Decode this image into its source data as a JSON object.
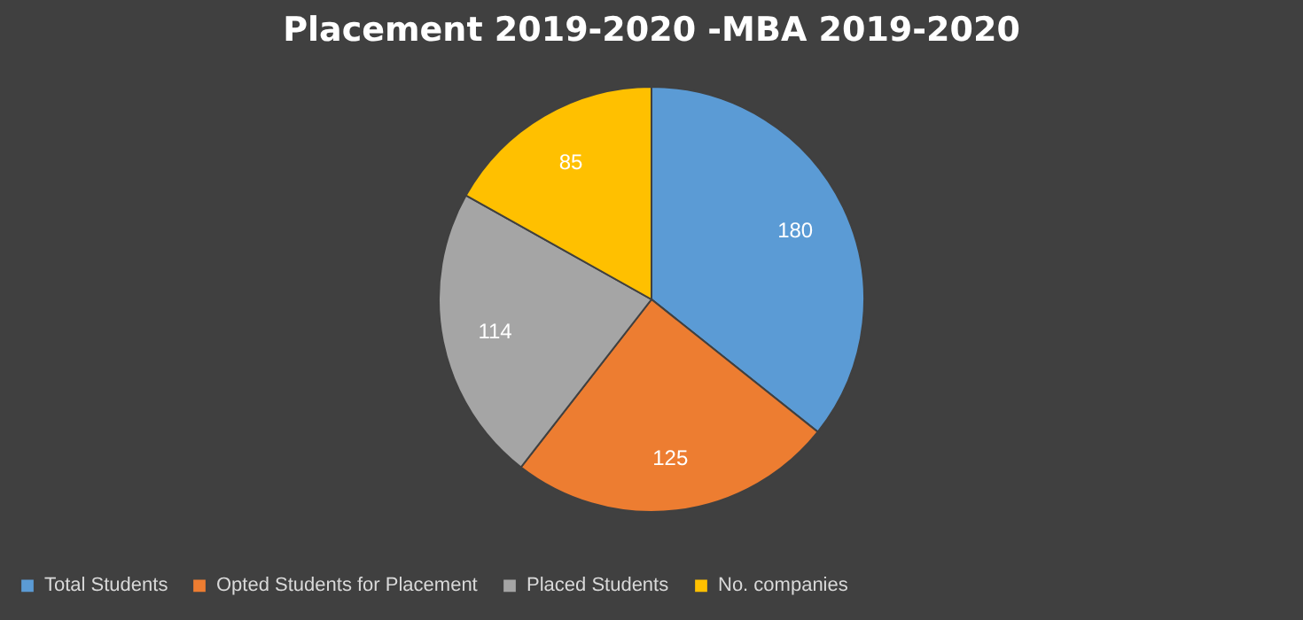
{
  "chart_data": {
    "type": "pie",
    "title": "Placement 2019-2020 -MBA 2019-2020",
    "categories": [
      "Total Students",
      "Opted Students for Placement",
      "Placed Students",
      "No. companies"
    ],
    "values": [
      180,
      125,
      114,
      85
    ],
    "colors": [
      "#5b9bd5",
      "#ed7d31",
      "#a5a5a5",
      "#ffc000"
    ],
    "data_labels": true,
    "legend": "bottom"
  }
}
